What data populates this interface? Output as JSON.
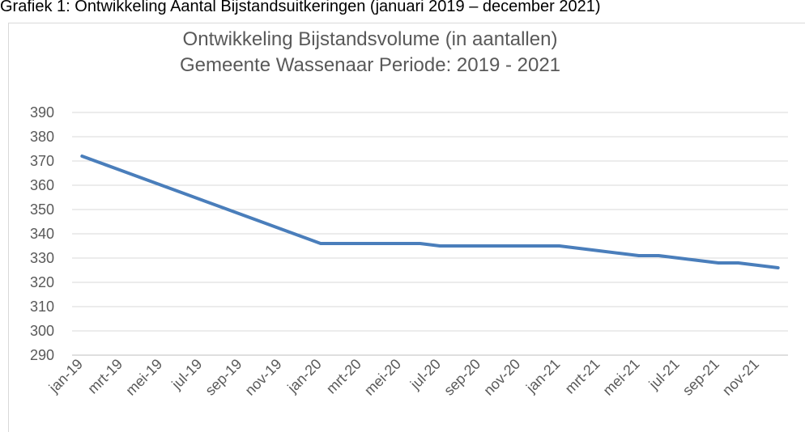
{
  "caption": "Grafiek 1: Ontwikkeling Aantal Bijstandsuitkeringen (januari 2019 – december 2021)",
  "chart_data": {
    "type": "line",
    "title": "Ontwikkeling Bijstandsvolume (in aantallen)",
    "subtitle": "Gemeente Wassenaar Periode: 2019 - 2021",
    "categories": [
      "jan-19",
      null,
      "mrt-19",
      null,
      "mei-19",
      null,
      "jul-19",
      null,
      "sep-19",
      null,
      "nov-19",
      null,
      "jan-20",
      null,
      "mrt-20",
      null,
      "mei-20",
      null,
      "jul-20",
      null,
      "sep-20",
      null,
      "nov-20",
      null,
      "jan-21",
      null,
      "mrt-21",
      null,
      "mei-21",
      null,
      "jul-21",
      null,
      "sep-21",
      null,
      "nov-21",
      null
    ],
    "series": [
      {
        "name": "Bijstandsvolume",
        "color": "#4a7ebb",
        "values": [
          372,
          369,
          366,
          363,
          360,
          357,
          354,
          351,
          348,
          345,
          342,
          339,
          336,
          336,
          336,
          336,
          336,
          336,
          335,
          335,
          335,
          335,
          335,
          335,
          335,
          334,
          333,
          332,
          331,
          331,
          330,
          329,
          328,
          328,
          327,
          326
        ]
      }
    ],
    "ylim": [
      290,
      390
    ],
    "yticks": [
      290,
      300,
      310,
      320,
      330,
      340,
      350,
      360,
      370,
      380,
      390
    ],
    "grid": true
  }
}
